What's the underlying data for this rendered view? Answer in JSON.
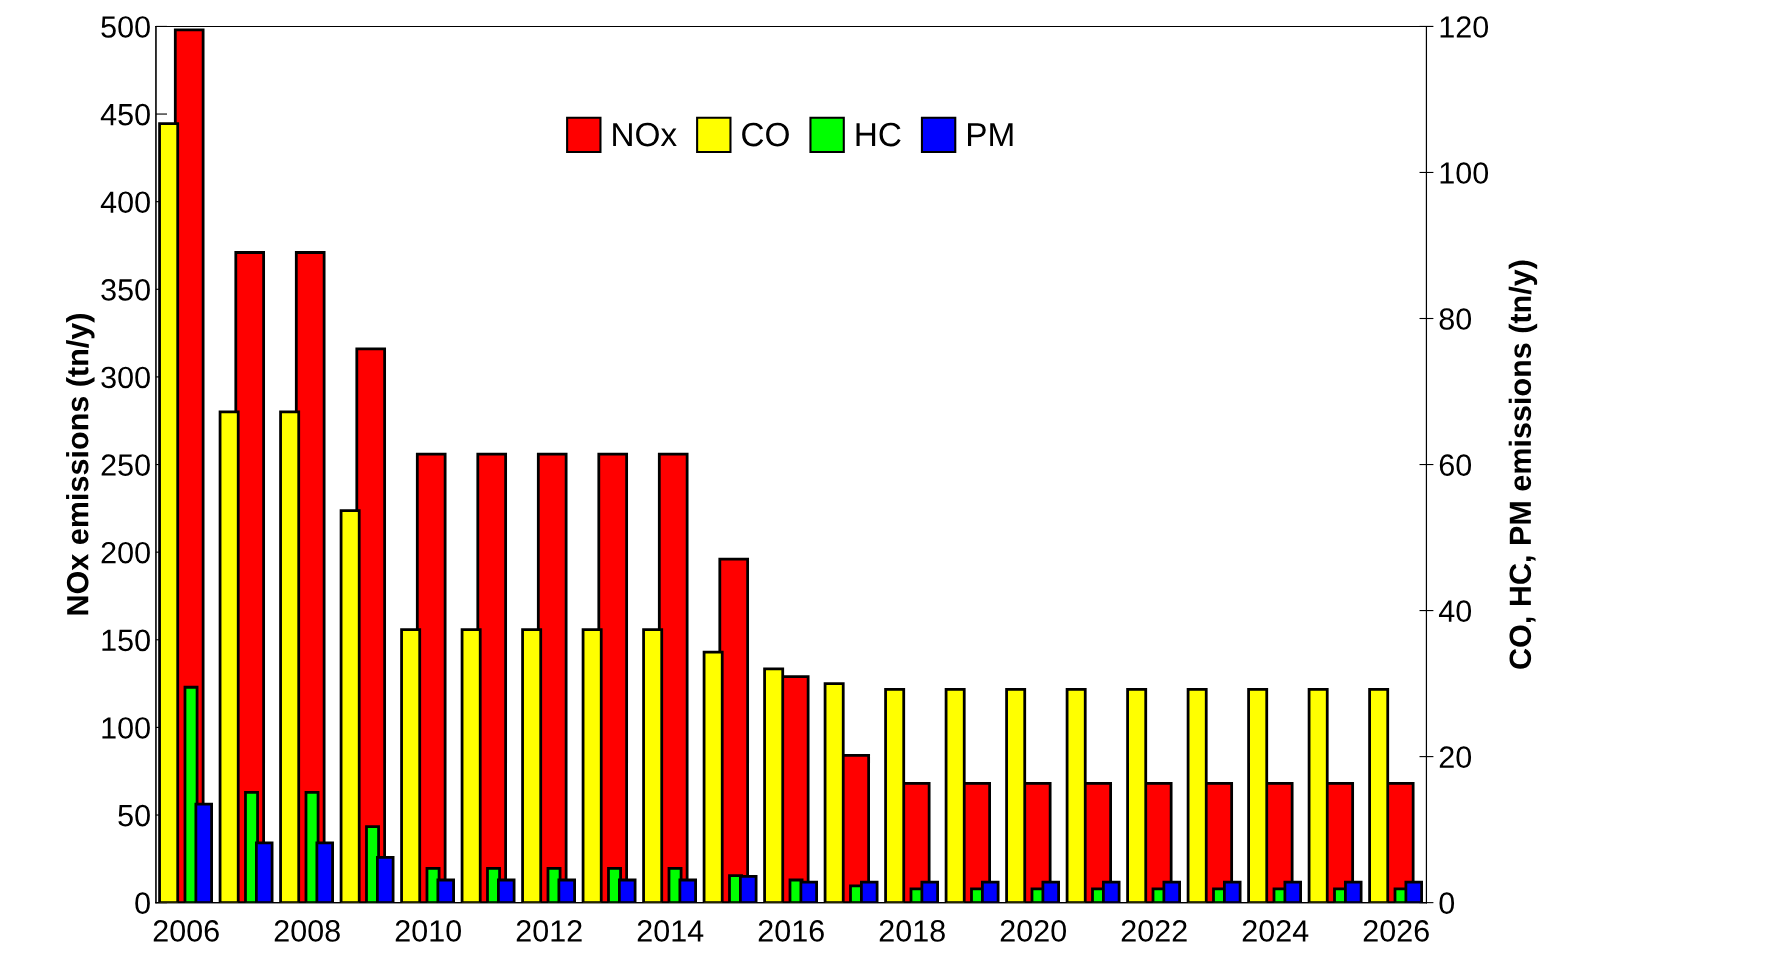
{
  "chart_data": {
    "type": "bar",
    "categories": [
      "2006",
      null,
      "2008",
      null,
      "2010",
      null,
      "2012",
      null,
      "2014",
      null,
      "2016",
      null,
      "2018",
      null,
      "2020",
      null,
      "2022",
      null,
      "2024",
      null,
      "2026"
    ],
    "series": [
      {
        "name": "NOx",
        "color": "#ff0000",
        "values": [
          498,
          371,
          371,
          316,
          256,
          256,
          256,
          256,
          256,
          196,
          129,
          84,
          68,
          68,
          68,
          68,
          68,
          68,
          68,
          68,
          68
        ]
      },
      {
        "name": "CO",
        "color": "#ffff00",
        "axis": "y2",
        "values": [
          106.7,
          67.2,
          67.2,
          53.7,
          37.4,
          37.4,
          37.4,
          37.4,
          37.4,
          34.3,
          32,
          30,
          29.2,
          29.2,
          29.2,
          29.2,
          29.2,
          29.2,
          29.2,
          29.2,
          29.2
        ]
      },
      {
        "name": "HC",
        "color": "#00ff00",
        "axis": "y2",
        "values": [
          29.5,
          15.1,
          15.1,
          10.4,
          4.7,
          4.7,
          4.7,
          4.7,
          4.7,
          3.7,
          3.1,
          2.3,
          1.9,
          1.9,
          1.9,
          1.9,
          1.9,
          1.9,
          1.9,
          1.9,
          1.9
        ]
      },
      {
        "name": "PM",
        "color": "#0000ff",
        "axis": "y2",
        "values": [
          13.5,
          8.2,
          8.2,
          6.2,
          3.1,
          3.1,
          3.1,
          3.1,
          3.1,
          3.6,
          2.8,
          2.8,
          2.8,
          2.8,
          2.8,
          2.8,
          2.8,
          2.8,
          2.8,
          2.8,
          2.8
        ]
      }
    ],
    "ylabel": "NOx emissions (tn/y)",
    "y2label": "CO, HC, PM emissions (tn/y)",
    "ylim": [
      0,
      500
    ],
    "yticks": [
      0,
      50,
      100,
      150,
      200,
      250,
      300,
      350,
      400,
      450,
      500
    ],
    "y2lim": [
      0,
      120
    ],
    "y2ticks": [
      0,
      20,
      40,
      60,
      80,
      100,
      120
    ],
    "legend": "top",
    "grid": false
  }
}
